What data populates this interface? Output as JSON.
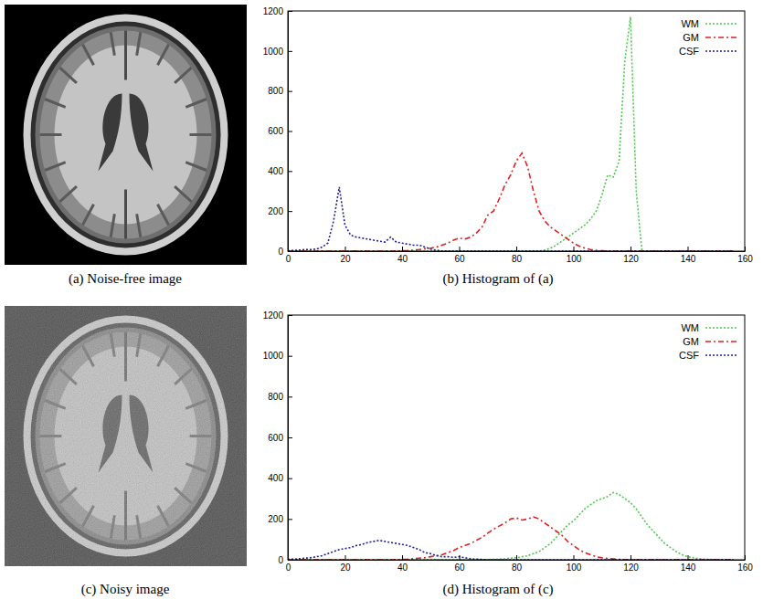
{
  "images": [
    {
      "caption": "(a) Noise-free image"
    },
    {
      "caption": "(c) Noisy image"
    }
  ],
  "chart_data": [
    {
      "type": "line",
      "title": "(b) Histogram of (a)",
      "xlim": [
        0,
        160
      ],
      "xticks": [
        0,
        20,
        40,
        60,
        80,
        100,
        120,
        140,
        160
      ],
      "ylim": [
        0,
        1200
      ],
      "yticks": [
        0,
        200,
        400,
        600,
        800,
        1000,
        1200
      ],
      "grid": false,
      "legend": "upper right",
      "x": [
        0,
        2,
        4,
        6,
        8,
        10,
        12,
        14,
        16,
        18,
        20,
        22,
        24,
        26,
        28,
        30,
        32,
        34,
        36,
        38,
        40,
        42,
        44,
        46,
        48,
        50,
        52,
        54,
        56,
        58,
        60,
        62,
        64,
        66,
        68,
        70,
        72,
        74,
        76,
        78,
        80,
        82,
        84,
        86,
        88,
        90,
        92,
        94,
        96,
        98,
        100,
        102,
        104,
        106,
        108,
        110,
        112,
        114,
        116,
        118,
        120,
        122,
        124,
        126,
        128,
        130,
        132,
        134,
        136,
        138,
        140,
        142,
        144,
        146,
        148,
        150,
        152,
        154,
        156
      ],
      "series": [
        {
          "name": "WM",
          "color": "#4cc94c",
          "line_style": "dotted",
          "values": [
            0,
            0,
            0,
            0,
            0,
            0,
            0,
            0,
            0,
            0,
            0,
            0,
            0,
            0,
            0,
            0,
            0,
            0,
            0,
            0,
            0,
            0,
            0,
            0,
            0,
            0,
            0,
            0,
            0,
            0,
            0,
            0,
            0,
            0,
            0,
            0,
            0,
            0,
            0,
            0,
            0,
            0,
            0,
            0,
            0,
            5,
            15,
            30,
            50,
            70,
            90,
            110,
            130,
            160,
            200,
            280,
            380,
            370,
            450,
            950,
            1170,
            300,
            0,
            0,
            0,
            0,
            0,
            0,
            0,
            0,
            0,
            0,
            0,
            0,
            0,
            0,
            0,
            0,
            0
          ]
        },
        {
          "name": "GM",
          "color": "#dd2222",
          "line_style": "dashdot",
          "values": [
            0,
            0,
            0,
            0,
            0,
            0,
            0,
            0,
            0,
            0,
            0,
            0,
            0,
            0,
            0,
            0,
            0,
            0,
            0,
            0,
            2,
            3,
            5,
            8,
            12,
            15,
            20,
            30,
            40,
            55,
            65,
            60,
            70,
            90,
            120,
            180,
            200,
            260,
            330,
            380,
            450,
            490,
            420,
            300,
            200,
            150,
            120,
            100,
            80,
            60,
            40,
            25,
            15,
            8,
            4,
            2,
            0,
            0,
            0,
            0,
            0,
            0,
            0,
            0,
            0,
            0,
            0,
            0,
            0,
            0,
            0,
            0,
            0,
            0,
            0,
            0,
            0,
            0,
            0
          ]
        },
        {
          "name": "CSF",
          "color": "#1f1f99",
          "line_style": "dotted",
          "values": [
            2,
            3,
            5,
            8,
            8,
            10,
            20,
            40,
            150,
            320,
            130,
            80,
            70,
            65,
            60,
            55,
            50,
            45,
            70,
            45,
            40,
            35,
            30,
            30,
            20,
            10,
            5,
            0,
            0,
            0,
            0,
            0,
            0,
            0,
            0,
            0,
            0,
            0,
            0,
            0,
            0,
            0,
            0,
            0,
            0,
            0,
            0,
            0,
            0,
            0,
            0,
            0,
            0,
            0,
            0,
            0,
            0,
            0,
            0,
            0,
            0,
            0,
            0,
            0,
            0,
            0,
            0,
            0,
            0,
            0,
            0,
            0,
            0,
            0,
            0,
            0,
            0,
            0,
            0
          ]
        }
      ]
    },
    {
      "type": "line",
      "title": "(d) Histogram of (c)",
      "xlim": [
        0,
        160
      ],
      "xticks": [
        0,
        20,
        40,
        60,
        80,
        100,
        120,
        140,
        160
      ],
      "ylim": [
        0,
        1200
      ],
      "yticks": [
        0,
        200,
        400,
        600,
        800,
        1000,
        1200
      ],
      "grid": false,
      "legend": "upper right",
      "x": [
        0,
        2,
        4,
        6,
        8,
        10,
        12,
        14,
        16,
        18,
        20,
        22,
        24,
        26,
        28,
        30,
        32,
        34,
        36,
        38,
        40,
        42,
        44,
        46,
        48,
        50,
        52,
        54,
        56,
        58,
        60,
        62,
        64,
        66,
        68,
        70,
        72,
        74,
        76,
        78,
        80,
        82,
        84,
        86,
        88,
        90,
        92,
        94,
        96,
        98,
        100,
        102,
        104,
        106,
        108,
        110,
        112,
        114,
        116,
        118,
        120,
        122,
        124,
        126,
        128,
        130,
        132,
        134,
        136,
        138,
        140,
        142,
        144,
        146,
        148,
        150,
        152,
        154,
        156
      ],
      "series": [
        {
          "name": "WM",
          "color": "#4cc94c",
          "line_style": "dotted",
          "values": [
            0,
            0,
            0,
            0,
            0,
            0,
            0,
            0,
            0,
            0,
            0,
            0,
            0,
            0,
            0,
            0,
            0,
            0,
            0,
            0,
            0,
            0,
            0,
            0,
            0,
            0,
            0,
            0,
            0,
            0,
            0,
            0,
            0,
            0,
            0,
            1,
            2,
            3,
            5,
            8,
            10,
            15,
            20,
            30,
            40,
            60,
            80,
            110,
            140,
            170,
            190,
            220,
            250,
            270,
            290,
            300,
            310,
            330,
            320,
            300,
            280,
            250,
            210,
            170,
            140,
            110,
            80,
            60,
            40,
            25,
            15,
            10,
            5,
            3,
            2,
            1,
            0,
            0,
            0
          ]
        },
        {
          "name": "GM",
          "color": "#dd2222",
          "line_style": "dashdot",
          "values": [
            0,
            0,
            0,
            0,
            0,
            0,
            0,
            0,
            0,
            0,
            0,
            0,
            0,
            0,
            0,
            0,
            0,
            0,
            0,
            0,
            2,
            3,
            5,
            8,
            10,
            15,
            20,
            25,
            35,
            45,
            60,
            70,
            80,
            95,
            110,
            130,
            150,
            165,
            180,
            200,
            205,
            195,
            200,
            210,
            200,
            180,
            160,
            140,
            120,
            90,
            70,
            50,
            35,
            25,
            15,
            10,
            6,
            4,
            2,
            1,
            0,
            0,
            0,
            0,
            0,
            0,
            0,
            0,
            0,
            0,
            0,
            0,
            0,
            0,
            0,
            0,
            0,
            0,
            0
          ]
        },
        {
          "name": "CSF",
          "color": "#1f1f99",
          "line_style": "dotted",
          "values": [
            2,
            3,
            5,
            8,
            10,
            15,
            20,
            30,
            40,
            50,
            55,
            60,
            70,
            75,
            85,
            90,
            95,
            90,
            85,
            80,
            75,
            70,
            60,
            50,
            35,
            30,
            20,
            15,
            15,
            12,
            15,
            10,
            5,
            3,
            2,
            0,
            0,
            0,
            0,
            0,
            0,
            0,
            0,
            0,
            0,
            0,
            0,
            0,
            0,
            0,
            0,
            0,
            0,
            0,
            0,
            0,
            0,
            0,
            0,
            0,
            0,
            0,
            0,
            0,
            0,
            0,
            0,
            0,
            0,
            0,
            0,
            0,
            0,
            0,
            0,
            0,
            0,
            0,
            0
          ]
        }
      ]
    }
  ]
}
